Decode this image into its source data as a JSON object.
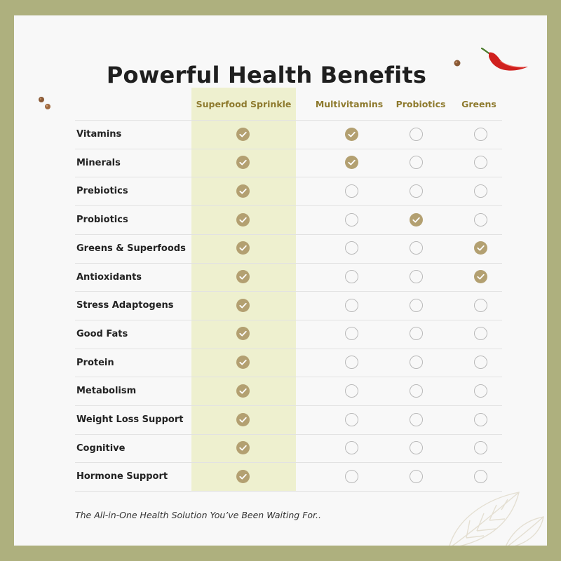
{
  "title": "Powerful Health Benefits",
  "columns": [
    "Superfood Sprinkle",
    "Multivitamins",
    "Probiotics",
    "Greens"
  ],
  "rows": [
    {
      "label": "Vitamins",
      "checks": [
        true,
        true,
        false,
        false
      ]
    },
    {
      "label": "Minerals",
      "checks": [
        true,
        true,
        false,
        false
      ]
    },
    {
      "label": "Prebiotics",
      "checks": [
        true,
        false,
        false,
        false
      ]
    },
    {
      "label": "Probiotics",
      "checks": [
        true,
        false,
        true,
        false
      ]
    },
    {
      "label": "Greens & Superfoods",
      "checks": [
        true,
        false,
        false,
        true
      ]
    },
    {
      "label": "Antioxidants",
      "checks": [
        true,
        false,
        false,
        true
      ]
    },
    {
      "label": "Stress Adaptogens",
      "checks": [
        true,
        false,
        false,
        false
      ]
    },
    {
      "label": "Good Fats",
      "checks": [
        true,
        false,
        false,
        false
      ]
    },
    {
      "label": "Protein",
      "checks": [
        true,
        false,
        false,
        false
      ]
    },
    {
      "label": "Metabolism",
      "checks": [
        true,
        false,
        false,
        false
      ]
    },
    {
      "label": "Weight Loss Support",
      "checks": [
        true,
        false,
        false,
        false
      ]
    },
    {
      "label": "Cognitive",
      "checks": [
        true,
        false,
        false,
        false
      ]
    },
    {
      "label": "Hormone Support",
      "checks": [
        true,
        false,
        false,
        false
      ]
    }
  ],
  "footer": "The All-in-One Health Solution You’ve Been Waiting For..",
  "icons": {
    "check": "check-circle-icon",
    "empty": "empty-circle-icon",
    "pepper": "chili-pepper-icon",
    "seeds": "peppercorn-icon",
    "leaf": "leaf-icon"
  },
  "colors": {
    "frame": "#aeb07e",
    "card": "#f8f8f8",
    "highlight": "#eef0cf",
    "check": "#b3a071",
    "header_text": "#8e7a2e",
    "pepper": "#d0201e"
  }
}
